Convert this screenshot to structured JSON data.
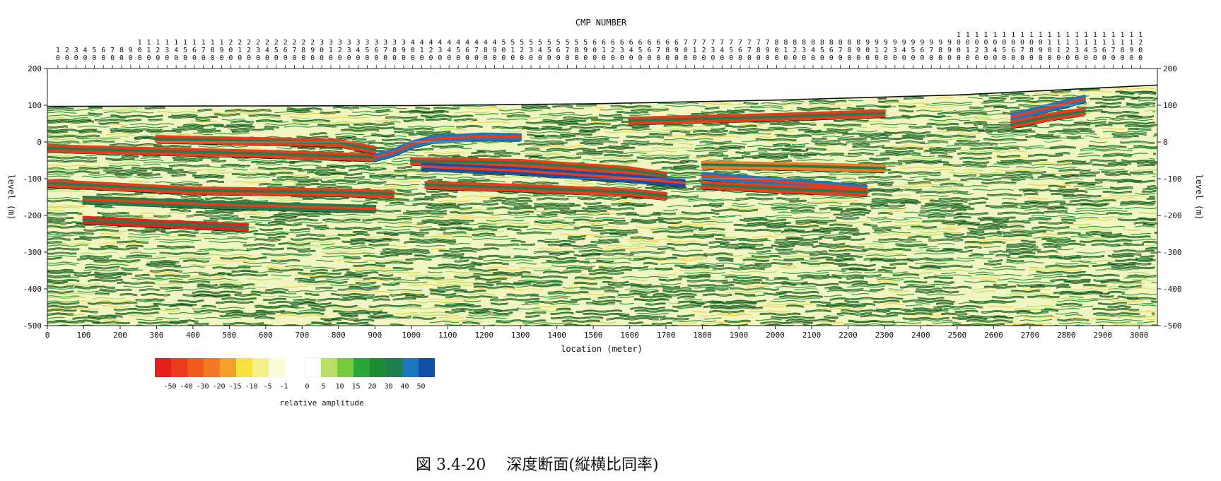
{
  "chart_data": {
    "type": "heatmap",
    "title": "CMP NUMBER",
    "xlabel": "location (meter)",
    "ylabel": "level (m)",
    "xlim": [
      0,
      3050
    ],
    "ylim": [
      -500,
      200
    ],
    "x_ticks": [
      0,
      100,
      200,
      300,
      400,
      500,
      600,
      700,
      800,
      900,
      1000,
      1100,
      1200,
      1300,
      1400,
      1500,
      1600,
      1700,
      1800,
      1900,
      2000,
      2100,
      2200,
      2300,
      2400,
      2500,
      2600,
      2700,
      2800,
      2900,
      3000
    ],
    "y_ticks": [
      200,
      100,
      0,
      -100,
      -200,
      -300,
      -400,
      -500
    ],
    "cmp_ticks": [
      10,
      20,
      30,
      40,
      50,
      60,
      70,
      80,
      90,
      100,
      110,
      120,
      130,
      140,
      150,
      160,
      170,
      180,
      190,
      200,
      210,
      220,
      230,
      240,
      250,
      260,
      270,
      280,
      290,
      300,
      310,
      320,
      330,
      340,
      350,
      360,
      370,
      380,
      390,
      400,
      410,
      420,
      430,
      440,
      450,
      460,
      470,
      480,
      490,
      500,
      510,
      520,
      530,
      540,
      550,
      560,
      570,
      580,
      590,
      600,
      610,
      620,
      630,
      640,
      650,
      660,
      670,
      680,
      690,
      700,
      710,
      720,
      730,
      740,
      750,
      760,
      770,
      780,
      790,
      800,
      810,
      820,
      830,
      840,
      850,
      860,
      870,
      880,
      890,
      900,
      910,
      920,
      930,
      940,
      950,
      960,
      970,
      980,
      990,
      1000,
      1010,
      1020,
      1030,
      1040,
      1050,
      1060,
      1070,
      1080,
      1090,
      1100,
      1110,
      1120,
      1130,
      1140,
      1150,
      1160,
      1170,
      1180,
      1190,
      1200
    ],
    "surface": [
      {
        "x": 0,
        "level": 97
      },
      {
        "x": 1000,
        "level": 99
      },
      {
        "x": 1500,
        "level": 104
      },
      {
        "x": 2000,
        "level": 114
      },
      {
        "x": 2500,
        "level": 128
      },
      {
        "x": 3050,
        "level": 155
      }
    ],
    "reflectors": [
      {
        "x": [
          0,
          300,
          600,
          800,
          900
        ],
        "level": [
          -10,
          -18,
          -25,
          -32,
          -35
        ],
        "amp": -45
      },
      {
        "x": [
          300,
          800,
          900
        ],
        "level": [
          15,
          5,
          -15
        ],
        "amp": -40
      },
      {
        "x": [
          900,
          950,
          1000,
          1060,
          1200,
          1300
        ],
        "level": [
          -35,
          -22,
          0,
          15,
          22,
          20
        ],
        "amp": 45
      },
      {
        "x": [
          1000,
          1300,
          1600,
          1700
        ],
        "level": [
          -45,
          -50,
          -70,
          -85
        ],
        "amp": -45
      },
      {
        "x": [
          1030,
          1300,
          1600,
          1750
        ],
        "level": [
          -60,
          -72,
          -92,
          -105
        ],
        "amp": 50
      },
      {
        "x": [
          1040,
          1300,
          1600,
          1700
        ],
        "level": [
          -110,
          -118,
          -130,
          -140
        ],
        "amp": -40
      },
      {
        "x": [
          1800,
          2000,
          2250
        ],
        "level": [
          -85,
          -100,
          -120
        ],
        "amp": 40
      },
      {
        "x": [
          1800,
          2000,
          2250
        ],
        "level": [
          -110,
          -120,
          -130
        ],
        "amp": -45
      },
      {
        "x": [
          0,
          400,
          800,
          950
        ],
        "level": [
          -105,
          -125,
          -130,
          -135
        ],
        "amp": -40
      },
      {
        "x": [
          100,
          500,
          900
        ],
        "level": [
          -150,
          -165,
          -175
        ],
        "amp": 35
      },
      {
        "x": [
          100,
          300,
          550
        ],
        "level": [
          -205,
          -215,
          -225
        ],
        "amp": -50
      },
      {
        "x": [
          1600,
          2000,
          2300
        ],
        "level": [
          65,
          75,
          85
        ],
        "amp": -40
      },
      {
        "x": [
          2650,
          2750,
          2850
        ],
        "level": [
          75,
          100,
          125
        ],
        "amp": 45
      },
      {
        "x": [
          2650,
          2750,
          2850
        ],
        "level": [
          55,
          75,
          90
        ],
        "amp": -45
      },
      {
        "x": [
          1800,
          2100,
          2300
        ],
        "level": [
          -55,
          -60,
          -65
        ],
        "amp": -30
      }
    ],
    "colorbar": {
      "label": "relative amplitude",
      "tick_labels": [
        "-50",
        "-40",
        "-30",
        "-20",
        "-15",
        "-10",
        "-5",
        "-1",
        "0",
        "5",
        "10",
        "15",
        "20",
        "30",
        "40",
        "50"
      ],
      "colors": [
        "#e8201c",
        "#ee3a1c",
        "#f05a1e",
        "#f37a22",
        "#f4a02a",
        "#f8e040",
        "#f6f08a",
        "#fbfbd8",
        "#ffffff",
        "#b8e068",
        "#78cc3c",
        "#2aa63a",
        "#1f8c34",
        "#1e7e4e",
        "#1b78c0",
        "#1050a8"
      ]
    }
  },
  "figure_caption": "図 3.4-20　 深度断面(縦横比同率)"
}
